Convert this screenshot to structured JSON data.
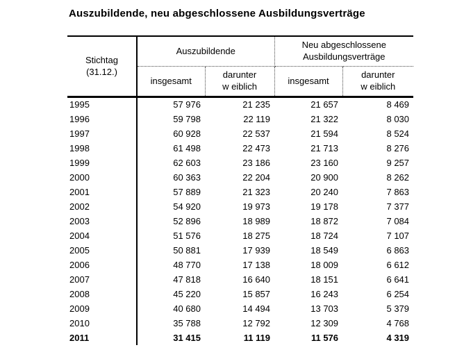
{
  "title": "Auszubildende, neu abgeschlossene Ausbildungsverträge",
  "table": {
    "corner": {
      "line1": "Stichtag",
      "line2": "(31.12.)"
    },
    "group1_label": "Auszubildende",
    "group2": {
      "line1": "Neu abgeschlossene",
      "line2": "Ausbildungsverträge"
    },
    "sub_total_1": "insgesamt",
    "sub_female_1": {
      "line1": "darunter",
      "line2": "w eiblich"
    },
    "sub_total_2": "insgesamt",
    "sub_female_2": {
      "line1": "darunter",
      "line2": "w eiblich"
    },
    "rows": [
      {
        "year": "1995",
        "values": [
          "57 976",
          "21 235",
          "21 657",
          "8 469"
        ],
        "bold": false
      },
      {
        "year": "1996",
        "values": [
          "59 798",
          "22 119",
          "21 322",
          "8 030"
        ],
        "bold": false
      },
      {
        "year": "1997",
        "values": [
          "60 928",
          "22 537",
          "21 594",
          "8 524"
        ],
        "bold": false
      },
      {
        "year": "1998",
        "values": [
          "61 498",
          "22 473",
          "21 713",
          "8 276"
        ],
        "bold": false
      },
      {
        "year": "1999",
        "values": [
          "62 603",
          "23 186",
          "23 160",
          "9 257"
        ],
        "bold": false
      },
      {
        "year": "2000",
        "values": [
          "60 363",
          "22 204",
          "20 900",
          "8 262"
        ],
        "bold": false
      },
      {
        "year": "2001",
        "values": [
          "57 889",
          "21 323",
          "20 240",
          "7 863"
        ],
        "bold": false
      },
      {
        "year": "2002",
        "values": [
          "54 920",
          "19 973",
          "19 178",
          "7 377"
        ],
        "bold": false
      },
      {
        "year": "2003",
        "values": [
          "52 896",
          "18 989",
          "18 872",
          "7 084"
        ],
        "bold": false
      },
      {
        "year": "2004",
        "values": [
          "51 576",
          "18 275",
          "18 724",
          "7 107"
        ],
        "bold": false
      },
      {
        "year": "2005",
        "values": [
          "50 881",
          "17 939",
          "18 549",
          "6 863"
        ],
        "bold": false
      },
      {
        "year": "2006",
        "values": [
          "48 770",
          "17 138",
          "18 009",
          "6 612"
        ],
        "bold": false
      },
      {
        "year": "2007",
        "values": [
          "47 818",
          "16 640",
          "18 151",
          "6 641"
        ],
        "bold": false
      },
      {
        "year": "2008",
        "values": [
          "45 220",
          "15 857",
          "16 243",
          "6 254"
        ],
        "bold": false
      },
      {
        "year": "2009",
        "values": [
          "40 680",
          "14 494",
          "13 703",
          "5 379"
        ],
        "bold": false
      },
      {
        "year": "2010",
        "values": [
          "35 788",
          "12 792",
          "12 309",
          "4 768"
        ],
        "bold": false
      },
      {
        "year": "2011",
        "values": [
          "31 415",
          "11 119",
          "11 576",
          "4 319"
        ],
        "bold": true
      }
    ]
  }
}
